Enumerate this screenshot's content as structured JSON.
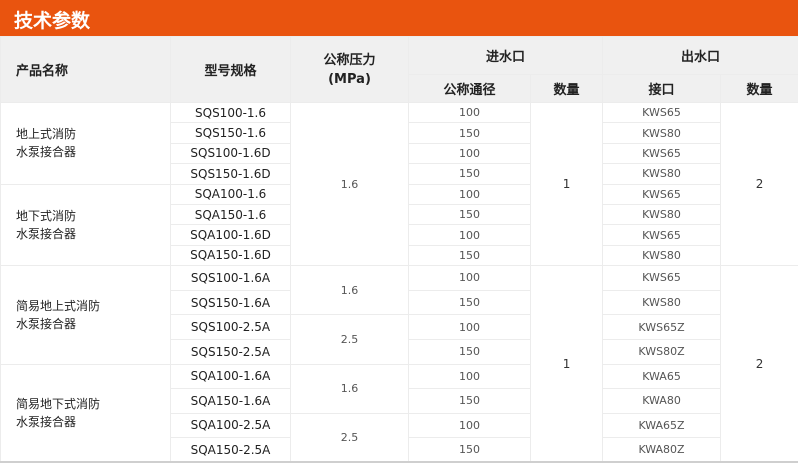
{
  "title": "技术参数",
  "colors": {
    "accent": "#e9540f",
    "header_bg": "#f0f0f0"
  },
  "headers": {
    "product": "产品名称",
    "model": "型号规格",
    "pressure": "公称压力\n(MPa)",
    "inlet": "进水口",
    "inlet_dn": "公称通径",
    "inlet_qty": "数量",
    "outlet": "出水口",
    "outlet_port": "接口",
    "outlet_qty": "数量"
  },
  "groups": [
    {
      "name": "地上式消防\n水泵接合器",
      "rows": [
        {
          "model": "SQS100-1.6",
          "dn": "100",
          "port": "KWS65"
        },
        {
          "model": "SQS150-1.6",
          "dn": "150",
          "port": "KWS80"
        },
        {
          "model": "SQS100-1.6D",
          "dn": "100",
          "port": "KWS65"
        },
        {
          "model": "SQS150-1.6D",
          "dn": "150",
          "port": "KWS80"
        }
      ]
    },
    {
      "name": "地下式消防\n水泵接合器",
      "rows": [
        {
          "model": "SQA100-1.6",
          "dn": "100",
          "port": "KWS65"
        },
        {
          "model": "SQA150-1.6",
          "dn": "150",
          "port": "KWS80"
        },
        {
          "model": "SQA100-1.6D",
          "dn": "100",
          "port": "KWS65"
        },
        {
          "model": "SQA150-1.6D",
          "dn": "150",
          "port": "KWS80"
        }
      ]
    },
    {
      "name": "简易地上式消防\n水泵接合器",
      "rows": [
        {
          "model": "SQS100-1.6A",
          "dn": "100",
          "port": "KWS65"
        },
        {
          "model": "SQS150-1.6A",
          "dn": "150",
          "port": "KWS80"
        },
        {
          "model": "SQS100-2.5A",
          "dn": "100",
          "port": "KWS65Z"
        },
        {
          "model": "SQS150-2.5A",
          "dn": "150",
          "port": "KWS80Z"
        }
      ]
    },
    {
      "name": "简易地下式消防\n水泵接合器",
      "rows": [
        {
          "model": "SQA100-1.6A",
          "dn": "100",
          "port": "KWA65"
        },
        {
          "model": "SQA150-1.6A",
          "dn": "150",
          "port": "KWA80"
        },
        {
          "model": "SQA100-2.5A",
          "dn": "100",
          "port": "KWA65Z"
        },
        {
          "model": "SQA150-2.5A",
          "dn": "150",
          "port": "KWA80Z"
        }
      ]
    }
  ],
  "pressure_spans": [
    {
      "value": "1.6",
      "rows": 8
    },
    {
      "value": "1.6",
      "rows": 2
    },
    {
      "value": "2.5",
      "rows": 2
    },
    {
      "value": "1.6",
      "rows": 2
    },
    {
      "value": "2.5",
      "rows": 2
    }
  ],
  "qty_blocks": [
    {
      "inlet": "1",
      "outlet": "2",
      "rows": 8
    },
    {
      "inlet": "1",
      "outlet": "2",
      "rows": 8
    }
  ]
}
